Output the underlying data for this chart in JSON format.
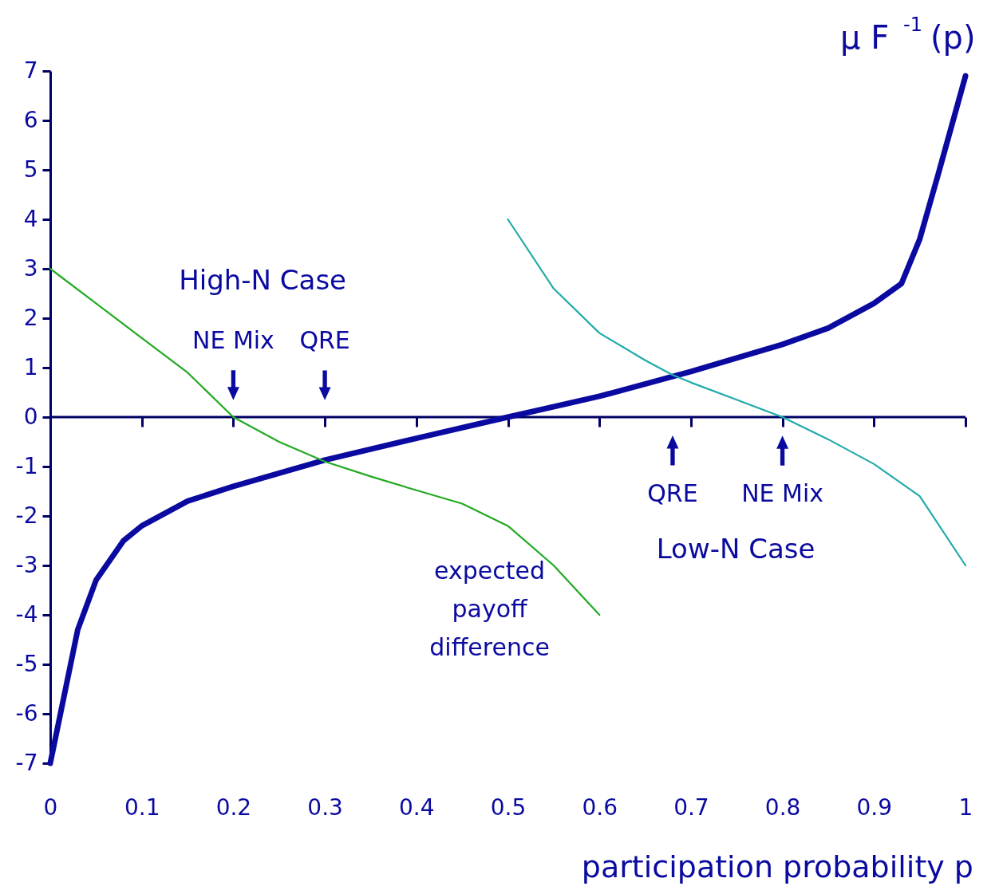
{
  "chart_data": {
    "type": "line",
    "xlabel": "participation probability p",
    "ylabel": "μ F$^{-1}$(p)",
    "xlim": [
      0,
      1
    ],
    "xticks": [
      0,
      0.1,
      0.2,
      0.3,
      0.4,
      0.5,
      0.6,
      0.7,
      0.8,
      0.9,
      1
    ],
    "ylim": [
      -7,
      7
    ],
    "yticks": [
      -7,
      -6,
      -5,
      -4,
      -3,
      -2,
      -1,
      0,
      1,
      2,
      3,
      4,
      5,
      6,
      7
    ],
    "grid": false,
    "marker": "none",
    "line_style": "solid",
    "ref_lines": [
      {
        "axis": "y",
        "value": 0
      }
    ],
    "series": [
      {
        "color": "#0a0aa0",
        "x": [
          0,
          0.03,
          0.05,
          0.08,
          0.1,
          0.15,
          0.2,
          0.3,
          0.4,
          0.5,
          0.6,
          0.7,
          0.8,
          0.85,
          0.9,
          0.93,
          0.95,
          0.97,
          1
        ],
        "values": [
          -7,
          -4.3,
          -3.3,
          -2.5,
          -2.2,
          -1.7,
          -1.4,
          -0.87,
          -0.43,
          0,
          0.42,
          0.92,
          1.47,
          1.8,
          2.3,
          2.7,
          3.6,
          4.9,
          6.9
        ]
      },
      {
        "color": "#22aa22",
        "x": [
          0,
          0.05,
          0.1,
          0.15,
          0.2,
          0.25,
          0.3,
          0.35,
          0.4,
          0.45,
          0.5,
          0.55,
          0.6
        ],
        "values": [
          3,
          2.3,
          1.6,
          0.9,
          0,
          -0.5,
          -0.9,
          -1.2,
          -1.48,
          -1.75,
          -2.2,
          -3,
          -4
        ]
      },
      {
        "color": "#22aaaa",
        "x": [
          0.5,
          0.55,
          0.6,
          0.65,
          0.68,
          0.7,
          0.75,
          0.8,
          0.85,
          0.9,
          0.95,
          1
        ],
        "values": [
          4,
          2.6,
          1.7,
          1.15,
          0.85,
          0.7,
          0.35,
          0,
          -0.45,
          -0.95,
          -1.6,
          -3
        ]
      }
    ],
    "annotations": [
      "High-N Case",
      {
        "text": "NE Mix",
        "x": 0.2,
        "y": 0
      },
      "QRE",
      "expected\npayoff\ndifference",
      "QRE",
      {
        "text": "NE Mix",
        "x": 0.8,
        "y": 0
      },
      "Low-N Case"
    ]
  }
}
